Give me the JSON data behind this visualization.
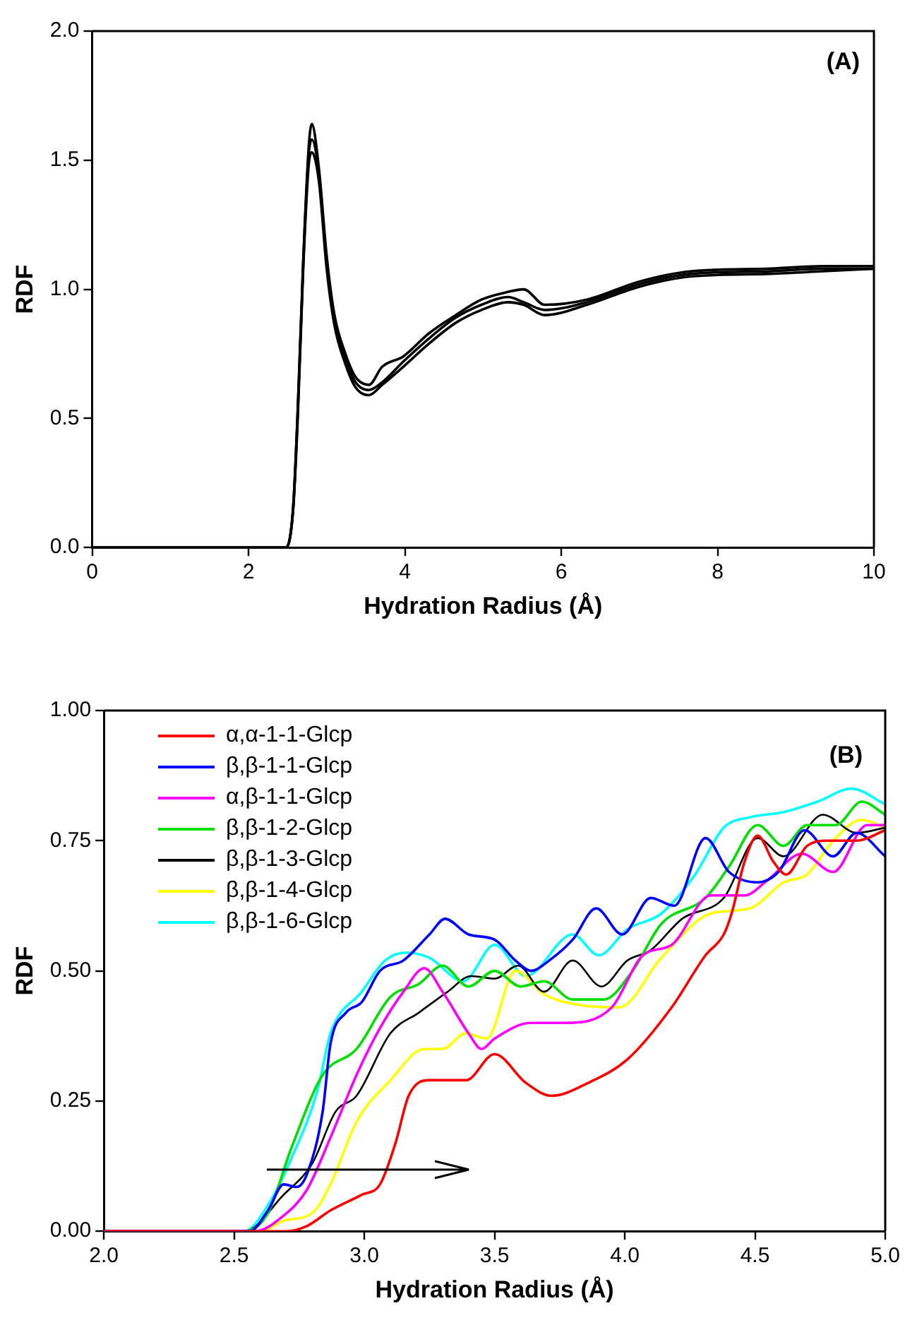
{
  "chart_data": [
    {
      "type": "line",
      "xlabel": "Hydration Radius (Å)",
      "ylabel": "RDF",
      "annotations": [
        "(A)"
      ],
      "grid": false,
      "legend": false,
      "marker": "none",
      "line_style": "solid",
      "xlim": [
        0,
        10
      ],
      "xticks": [
        0,
        2,
        4,
        6,
        8,
        10
      ],
      "ylim": [
        0,
        2
      ],
      "yticks": [
        {
          "value": 0,
          "label": "0.0"
        },
        {
          "value": 0.5,
          "label": "0.5"
        },
        {
          "value": 1,
          "label": "1.0"
        },
        {
          "value": 1.5,
          "label": "1.5"
        },
        {
          "value": 2,
          "label": "2.0"
        }
      ],
      "series": [
        {
          "color": "#000000",
          "x": [
            0,
            2.3,
            2.48,
            2.57,
            2.63,
            2.7,
            2.77,
            2.81,
            2.9,
            3.0,
            3.1,
            3.24,
            3.37,
            3.54,
            3.71,
            3.98,
            4.31,
            4.65,
            4.98,
            5.32,
            5.52,
            5.79,
            6.33,
            7.0,
            7.67,
            8.68,
            9.35,
            10
          ],
          "values": [
            0,
            0,
            0,
            0.15,
            0.53,
            1.11,
            1.55,
            1.64,
            1.47,
            1.13,
            0.9,
            0.75,
            0.66,
            0.63,
            0.7,
            0.74,
            0.83,
            0.9,
            0.96,
            0.99,
            1.0,
            0.94,
            0.96,
            1.03,
            1.07,
            1.08,
            1.09,
            1.09
          ]
        },
        {
          "color": "#000000",
          "x": [
            0,
            2.3,
            2.48,
            2.57,
            2.63,
            2.7,
            2.77,
            2.81,
            2.9,
            3.0,
            3.1,
            3.24,
            3.37,
            3.54,
            3.71,
            3.98,
            4.31,
            4.65,
            4.98,
            5.32,
            5.52,
            5.79,
            6.33,
            7.0,
            7.67,
            8.68,
            9.35,
            10
          ],
          "values": [
            0,
            0,
            0,
            0.15,
            0.53,
            1.1,
            1.52,
            1.58,
            1.45,
            1.11,
            0.88,
            0.73,
            0.64,
            0.61,
            0.64,
            0.72,
            0.81,
            0.89,
            0.94,
            0.97,
            0.95,
            0.92,
            0.95,
            1.02,
            1.06,
            1.07,
            1.08,
            1.08
          ]
        },
        {
          "color": "#000000",
          "x": [
            0,
            2.3,
            2.48,
            2.57,
            2.63,
            2.7,
            2.77,
            2.81,
            2.9,
            3.0,
            3.1,
            3.24,
            3.37,
            3.54,
            3.71,
            3.98,
            4.31,
            4.65,
            4.98,
            5.32,
            5.52,
            5.79,
            6.33,
            7.0,
            7.67,
            8.68,
            9.35,
            10
          ],
          "values": [
            0,
            0,
            0,
            0.14,
            0.5,
            1.08,
            1.48,
            1.53,
            1.42,
            1.08,
            0.86,
            0.71,
            0.62,
            0.59,
            0.63,
            0.7,
            0.79,
            0.87,
            0.92,
            0.95,
            0.94,
            0.9,
            0.94,
            1.01,
            1.05,
            1.06,
            1.07,
            1.08
          ]
        }
      ]
    },
    {
      "type": "line",
      "xlabel": "Hydration Radius (Å)",
      "ylabel": "RDF",
      "annotations": [
        "(B)"
      ],
      "grid": false,
      "legend": "top left",
      "marker": "none",
      "line_style": "solid",
      "xlim": [
        2,
        5
      ],
      "xticks": [
        {
          "value": 2,
          "label": "2.0"
        },
        {
          "value": 2.5,
          "label": "2.5"
        },
        {
          "value": 3,
          "label": "3.0"
        },
        {
          "value": 3.5,
          "label": "3.5"
        },
        {
          "value": 4,
          "label": "4.0"
        },
        {
          "value": 4.5,
          "label": "4.5"
        },
        {
          "value": 5,
          "label": "5.0"
        }
      ],
      "ylim": [
        0,
        1
      ],
      "yticks": [
        {
          "value": 0,
          "label": "0.00"
        },
        {
          "value": 0.25,
          "label": "0.25"
        },
        {
          "value": 0.5,
          "label": "0.50"
        },
        {
          "value": 0.75,
          "label": "0.75"
        },
        {
          "value": 1,
          "label": "1.00"
        }
      ],
      "series": [
        {
          "name": "α,α-1-1-Glcp",
          "color": "#ff0000",
          "x": [
            2,
            2.7,
            2.78,
            2.87,
            2.99,
            3.06,
            3.12,
            3.17,
            3.25,
            3.39,
            3.5,
            3.62,
            3.72,
            3.86,
            4.01,
            4.18,
            4.31,
            4.38,
            4.41,
            4.46,
            4.51,
            4.57,
            4.62,
            4.7,
            4.78,
            4.89,
            5.0
          ],
          "values": [
            0,
            0,
            0.01,
            0.04,
            0.07,
            0.09,
            0.17,
            0.26,
            0.29,
            0.29,
            0.34,
            0.285,
            0.26,
            0.285,
            0.33,
            0.43,
            0.53,
            0.57,
            0.61,
            0.71,
            0.76,
            0.71,
            0.685,
            0.74,
            0.75,
            0.75,
            0.77
          ]
        },
        {
          "name": "β,β-1-1-Glcp",
          "color": "#0000ff",
          "x": [
            2,
            2.56,
            2.63,
            2.69,
            2.74,
            2.78,
            2.84,
            2.87,
            2.93,
            2.99,
            3.06,
            3.15,
            3.25,
            3.31,
            3.4,
            3.5,
            3.58,
            3.64,
            3.71,
            3.8,
            3.89,
            3.99,
            4.1,
            4.19,
            4.31,
            4.4,
            4.51,
            4.59,
            4.69,
            4.8,
            4.89,
            5.0
          ],
          "values": [
            0,
            0,
            0.04,
            0.09,
            0.085,
            0.11,
            0.23,
            0.36,
            0.42,
            0.44,
            0.5,
            0.52,
            0.57,
            0.6,
            0.57,
            0.56,
            0.52,
            0.5,
            0.52,
            0.56,
            0.62,
            0.57,
            0.64,
            0.625,
            0.755,
            0.69,
            0.67,
            0.69,
            0.77,
            0.72,
            0.765,
            0.72
          ]
        },
        {
          "name": "α,β-1-1-Glcp",
          "color": "#ff00ff",
          "x": [
            2,
            2.58,
            2.69,
            2.78,
            2.87,
            2.97,
            3.06,
            3.15,
            3.23,
            3.3,
            3.4,
            3.45,
            3.5,
            3.64,
            3.77,
            3.95,
            4.07,
            4.18,
            4.33,
            4.46,
            4.55,
            4.68,
            4.8,
            4.93,
            5.0
          ],
          "values": [
            0,
            0,
            0.03,
            0.08,
            0.18,
            0.3,
            0.39,
            0.46,
            0.505,
            0.46,
            0.38,
            0.35,
            0.37,
            0.4,
            0.4,
            0.43,
            0.53,
            0.55,
            0.645,
            0.645,
            0.675,
            0.725,
            0.69,
            0.78,
            0.78
          ]
        },
        {
          "name": "β,β-1-2-Glcp",
          "color": "#00e000",
          "x": [
            2,
            2.54,
            2.63,
            2.72,
            2.84,
            2.97,
            3.1,
            3.21,
            3.3,
            3.4,
            3.5,
            3.6,
            3.69,
            3.8,
            3.92,
            4.03,
            4.14,
            4.31,
            4.4,
            4.51,
            4.61,
            4.7,
            4.81,
            4.91,
            5.0
          ],
          "values": [
            0,
            0,
            0.035,
            0.16,
            0.3,
            0.35,
            0.45,
            0.475,
            0.51,
            0.47,
            0.5,
            0.47,
            0.48,
            0.445,
            0.445,
            0.5,
            0.59,
            0.64,
            0.7,
            0.78,
            0.74,
            0.78,
            0.78,
            0.825,
            0.8
          ]
        },
        {
          "name": "β,β-1-3-Glcp",
          "color": "#000000",
          "x": [
            2,
            2.54,
            2.69,
            2.8,
            2.89,
            2.97,
            3.1,
            3.21,
            3.32,
            3.41,
            3.5,
            3.59,
            3.69,
            3.8,
            3.91,
            4.01,
            4.1,
            4.22,
            4.38,
            4.51,
            4.61,
            4.76,
            4.89,
            5.0
          ],
          "values": [
            0,
            0,
            0.07,
            0.13,
            0.23,
            0.26,
            0.38,
            0.42,
            0.46,
            0.49,
            0.485,
            0.51,
            0.46,
            0.52,
            0.47,
            0.52,
            0.54,
            0.6,
            0.64,
            0.755,
            0.72,
            0.8,
            0.765,
            0.775
          ]
        },
        {
          "name": "β,β-1-4-Glcp",
          "color": "#ffff00",
          "x": [
            2,
            2.6,
            2.69,
            2.8,
            2.87,
            2.97,
            3.1,
            3.23,
            3.3,
            3.39,
            3.47,
            3.58,
            3.69,
            3.82,
            3.98,
            4.14,
            4.33,
            4.48,
            4.61,
            4.7,
            4.8,
            4.91,
            5.0
          ],
          "values": [
            0,
            0,
            0.02,
            0.035,
            0.09,
            0.21,
            0.29,
            0.35,
            0.35,
            0.38,
            0.37,
            0.5,
            0.455,
            0.435,
            0.43,
            0.525,
            0.61,
            0.62,
            0.67,
            0.685,
            0.75,
            0.79,
            0.775
          ]
        },
        {
          "name": "β,β-1-6-Glcp",
          "color": "#00ffff",
          "x": [
            2,
            2.54,
            2.63,
            2.72,
            2.82,
            2.87,
            2.99,
            3.08,
            3.16,
            3.25,
            3.38,
            3.5,
            3.62,
            3.8,
            3.9,
            4.01,
            4.14,
            4.27,
            4.38,
            4.48,
            4.61,
            4.74,
            4.87,
            5.0
          ],
          "values": [
            0,
            0,
            0.05,
            0.14,
            0.27,
            0.38,
            0.46,
            0.52,
            0.535,
            0.525,
            0.48,
            0.55,
            0.49,
            0.57,
            0.53,
            0.58,
            0.61,
            0.685,
            0.775,
            0.795,
            0.805,
            0.825,
            0.85,
            0.82
          ]
        }
      ]
    }
  ]
}
